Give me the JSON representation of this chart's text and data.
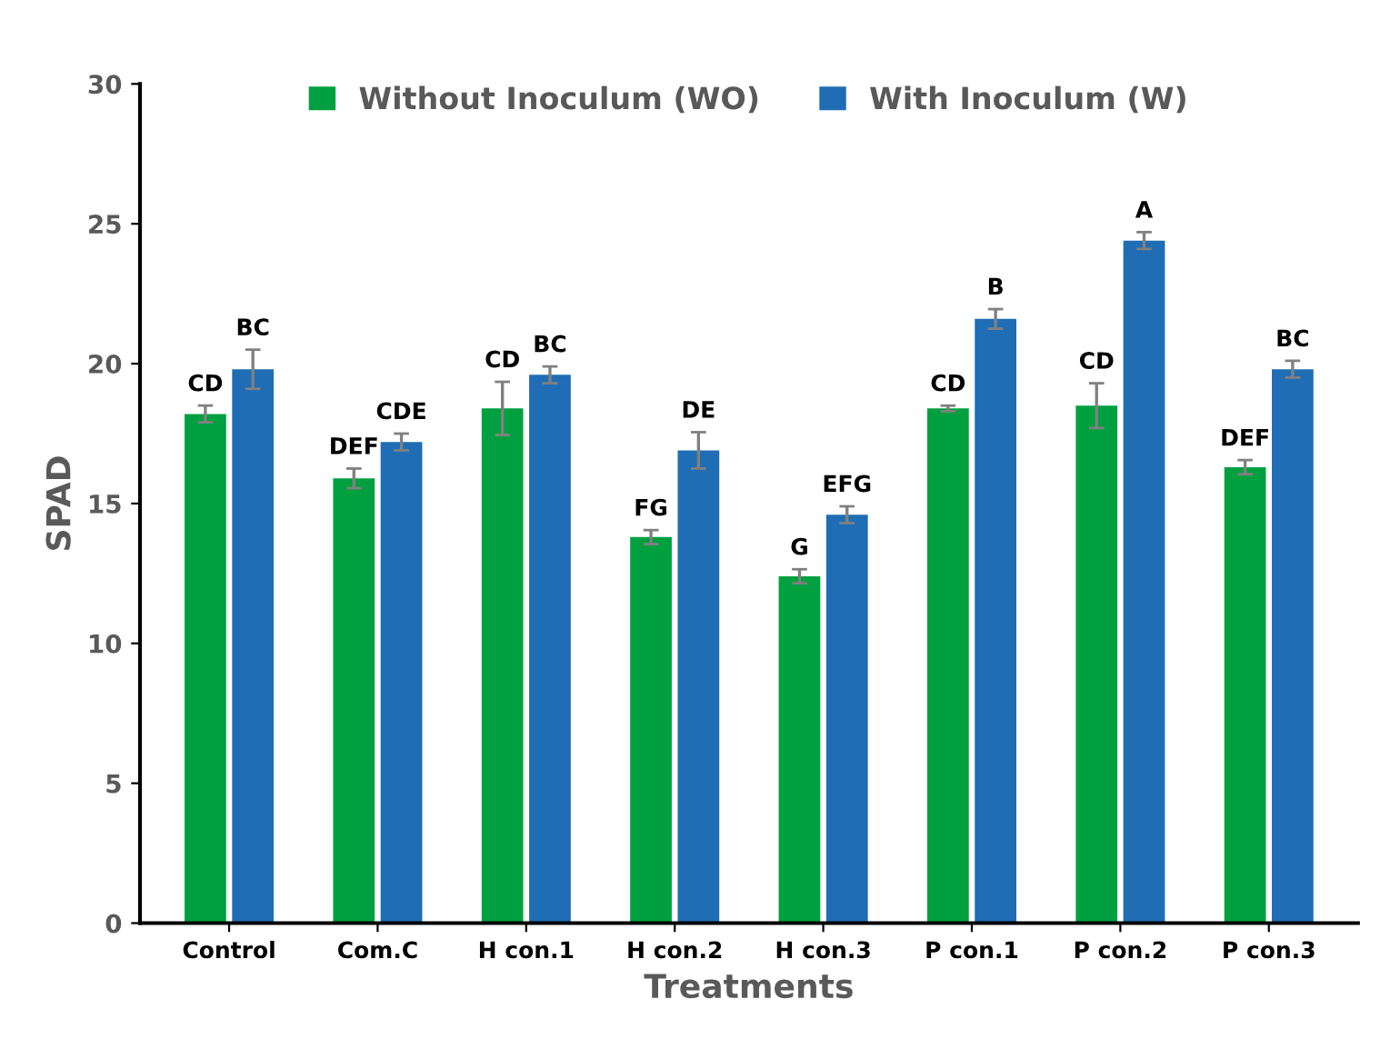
{
  "chart_data": {
    "type": "bar",
    "xlabel": "Treatments",
    "ylabel": "SPAD",
    "categories": [
      "Control",
      "Com.C",
      "H con.1",
      "H con.2",
      "H con.3",
      "P con.1",
      "P con.2",
      "P con.3"
    ],
    "series": [
      {
        "name": "Without Inoculum (WO)",
        "color": "#00a040",
        "values": [
          18.2,
          15.9,
          18.4,
          13.8,
          12.4,
          18.4,
          18.5,
          16.3
        ],
        "errors": [
          0.3,
          0.35,
          0.95,
          0.25,
          0.25,
          0.1,
          0.8,
          0.25
        ],
        "value_labels": [
          "CD",
          "DEF",
          "CD",
          "FG",
          "G",
          "CD",
          "CD",
          "DEF"
        ]
      },
      {
        "name": "With Inoculum (W)",
        "color": "#1f6db5",
        "values": [
          19.8,
          17.2,
          19.6,
          16.9,
          14.6,
          21.6,
          24.4,
          19.8
        ],
        "errors": [
          0.7,
          0.3,
          0.3,
          0.65,
          0.3,
          0.35,
          0.3,
          0.3
        ],
        "value_labels": [
          "BC",
          "CDE",
          "BC",
          "DE",
          "EFG",
          "B",
          "A",
          "BC"
        ]
      }
    ],
    "ylim": [
      0,
      30
    ],
    "yticks": [
      0,
      5,
      10,
      15,
      20,
      25,
      30
    ],
    "grid": false,
    "legend": "top"
  }
}
